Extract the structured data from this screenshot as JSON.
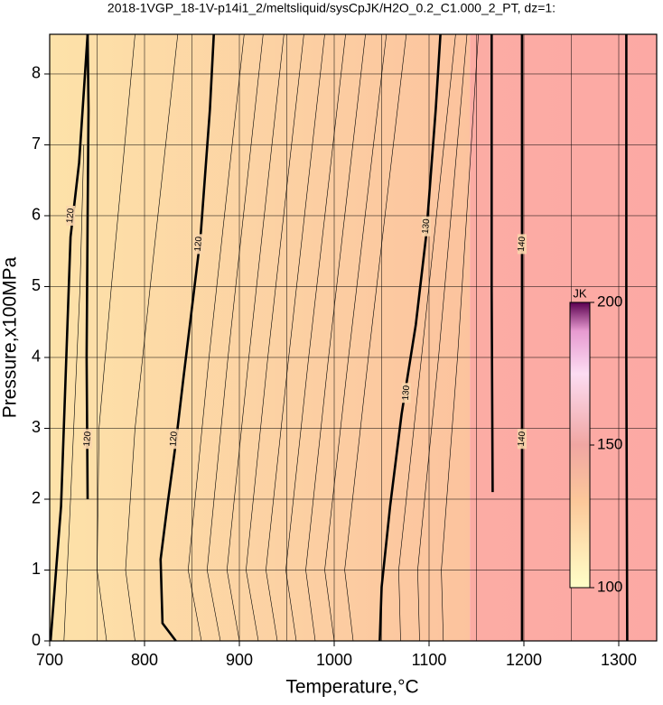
{
  "chart_data": {
    "type": "contour",
    "title": "2018-1VGP_18-1V-p14i1_2/meltsliquid/sysCpJK/H2O_0.2_C1.000_2_PT, dz=1:",
    "x_label": "Temperature,°C",
    "y_label": "Pressure,x100MPa",
    "xlim": [
      700,
      1340
    ],
    "ylim": [
      0,
      8.56
    ],
    "xticks": [
      700,
      800,
      900,
      1000,
      1100,
      1200,
      1300
    ],
    "yticks": [
      0,
      1,
      2,
      3,
      4,
      5,
      6,
      7,
      8
    ],
    "x_minor_grid": [
      750,
      850,
      950,
      1050,
      1150,
      1250
    ],
    "grid": true,
    "background": [
      {
        "x": [
          700,
          1143
        ],
        "colors": [
          "#fde2a9",
          "#fcc39e"
        ]
      },
      {
        "x": [
          1143,
          1340
        ],
        "colors": [
          "#fcaca4",
          "#fca9a4"
        ]
      }
    ],
    "contours": [
      {
        "level": 120,
        "bold": true,
        "x": [
          701,
          712,
          722,
          731,
          740
        ],
        "y": [
          0,
          1.9,
          5.7,
          6.75,
          8.56
        ],
        "label_at": [
          [
            722,
            6.0
          ]
        ]
      },
      {
        "level": 120,
        "bold": true,
        "x": [
          740,
          739,
          740,
          741,
          740
        ],
        "y": [
          2.0,
          4.0,
          6.0,
          7.5,
          8.56
        ],
        "label_at": [
          [
            740,
            2.85
          ]
        ]
      },
      {
        "level": 120,
        "bold": true,
        "x": [
          833,
          819,
          817,
          824,
          833,
          841,
          850,
          859,
          869,
          873
        ],
        "y": [
          0,
          0.25,
          1.15,
          1.9,
          2.8,
          3.7,
          4.7,
          5.7,
          7.5,
          8.56
        ],
        "label_at": [
          [
            831,
            2.85
          ],
          [
            857,
            5.6
          ]
        ]
      },
      {
        "level": 130,
        "bold": true,
        "x": [
          1048,
          1050,
          1059,
          1071,
          1086,
          1097,
          1107,
          1112
        ],
        "y": [
          0,
          0.76,
          1.9,
          3.2,
          4.46,
          5.73,
          7.5,
          8.56
        ],
        "label_at": [
          [
            1076,
            3.5
          ],
          [
            1097,
            5.85
          ]
        ]
      },
      {
        "bold": true,
        "x": [
          1167,
          1166,
          1166
        ],
        "y": [
          2.1,
          5.0,
          8.56
        ]
      },
      {
        "level": 140,
        "bold": true,
        "x": [
          1198,
          1198
        ],
        "y": [
          0,
          8.56
        ],
        "label_at": [
          [
            1198,
            5.6
          ],
          [
            1198,
            2.85
          ]
        ]
      },
      {
        "bold": true,
        "x": [
          1309,
          1308,
          1308
        ],
        "y": [
          0,
          4.0,
          8.56
        ]
      },
      {
        "x": [
          860,
          846,
          868,
          905
        ],
        "y": [
          0,
          1,
          4,
          8.56
        ]
      },
      {
        "x": [
          880,
          866,
          888,
          925
        ],
        "y": [
          0,
          1,
          4,
          8.56
        ]
      },
      {
        "x": [
          900,
          887,
          910,
          947
        ],
        "y": [
          0,
          1,
          4,
          8.56
        ]
      },
      {
        "x": [
          920,
          907,
          930,
          968
        ],
        "y": [
          0,
          1,
          4,
          8.56
        ]
      },
      {
        "x": [
          940,
          928,
          952,
          990
        ],
        "y": [
          0,
          1,
          4,
          8.56
        ]
      },
      {
        "x": [
          960,
          949,
          973,
          1012
        ],
        "y": [
          0,
          1,
          4,
          8.56
        ]
      },
      {
        "x": [
          980,
          970,
          994,
          1033
        ],
        "y": [
          0,
          1,
          4,
          8.56
        ]
      },
      {
        "x": [
          1000,
          990,
          1015,
          1055
        ],
        "y": [
          0,
          1,
          4,
          8.56
        ]
      },
      {
        "x": [
          1020,
          1011,
          1036,
          1076
        ],
        "y": [
          0,
          1,
          4,
          8.56
        ]
      },
      {
        "x": [
          1070,
          1068,
          1092,
          1128
        ],
        "y": [
          0,
          1,
          4,
          8.56
        ]
      },
      {
        "x": [
          1090,
          1088,
          1110,
          1140
        ],
        "y": [
          0,
          1,
          4,
          8.56
        ]
      },
      {
        "x": [
          1115,
          1113,
          1130,
          1152
        ],
        "y": [
          0,
          1,
          4,
          8.56
        ]
      },
      {
        "x": [
          715,
          722,
          732,
          736
        ],
        "y": [
          0,
          2,
          5,
          7
        ]
      },
      {
        "x": [
          760,
          750,
          752,
          765,
          790
        ],
        "y": [
          0,
          1,
          3,
          5,
          8.56
        ]
      },
      {
        "x": [
          790,
          780,
          790,
          810,
          835
        ],
        "y": [
          0,
          1,
          3,
          5.5,
          8.56
        ]
      }
    ],
    "colorbar": {
      "label": "JK",
      "lim": [
        100,
        200
      ],
      "ticks": [
        100,
        150,
        200
      ],
      "stops": [
        {
          "value": 100,
          "color": "#ffffc8"
        },
        {
          "value": 130,
          "color": "#fcc89a"
        },
        {
          "value": 150,
          "color": "#f0a6a2"
        },
        {
          "value": 175,
          "color": "#fcdcf2"
        },
        {
          "value": 190,
          "color": "#e79ad0"
        },
        {
          "value": 200,
          "color": "#5a0050"
        }
      ]
    }
  }
}
